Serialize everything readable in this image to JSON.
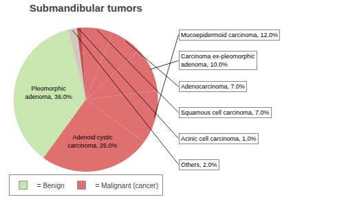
{
  "chart_data": {
    "type": "pie",
    "title": "Submandibular tumors",
    "categories": [
      "Pleomorphic\nadenoma, 36.0%",
      "Others, 2.0%",
      "Acinic cell carcinoma, 1.0%",
      "Squamous cell carcinoma, 7.0%",
      "Adenocarcinoma, 7.0%",
      "Carcinoma ex-pleomorphic\nadenoma, 10.0%",
      "Mucoepidermoid carcinoma, 12.0%",
      "Adenoid cystic\ncarcinoma, 25.0%"
    ],
    "values": [
      36.0,
      2.0,
      1.0,
      7.0,
      7.0,
      10.0,
      12.0,
      25.0
    ],
    "colors": [
      "#c8e6b0",
      "#d0c8c0",
      "#c0504d",
      "#e07070",
      "#e07070",
      "#e07070",
      "#e07070",
      "#e07070"
    ],
    "legend": "bottom",
    "legend_entries": [
      {
        "name": "= Benign",
        "color": "#c8e6b0"
      },
      {
        "name": "= Malignant (cancer)",
        "color": "#e07070"
      }
    ]
  }
}
